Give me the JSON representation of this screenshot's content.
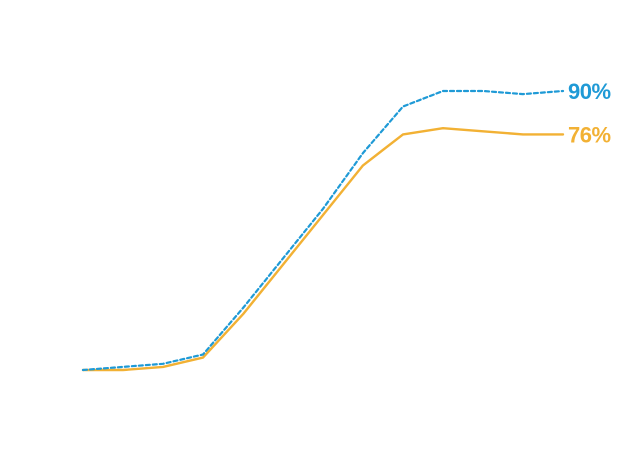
{
  "chart_data": {
    "type": "line",
    "title": "",
    "xlabel": "",
    "ylabel": "",
    "x": [
      0,
      1,
      2,
      3,
      4,
      5,
      6,
      7,
      8,
      9,
      10,
      11,
      12
    ],
    "ylim": [
      0,
      100
    ],
    "grid": false,
    "legend": "none",
    "series": [
      {
        "name": "",
        "color": "#1f9ad6",
        "dash": "dotted",
        "values": [
          0,
          1,
          2,
          5,
          20,
          36,
          52,
          70,
          85,
          90,
          90,
          89,
          90
        ],
        "end_label": "90%"
      },
      {
        "name": "",
        "color": "#f2b134",
        "dash": "solid",
        "values": [
          0,
          0,
          1,
          4,
          18,
          34,
          50,
          66,
          76,
          78,
          77,
          76,
          76
        ],
        "end_label": "76%"
      }
    ]
  }
}
